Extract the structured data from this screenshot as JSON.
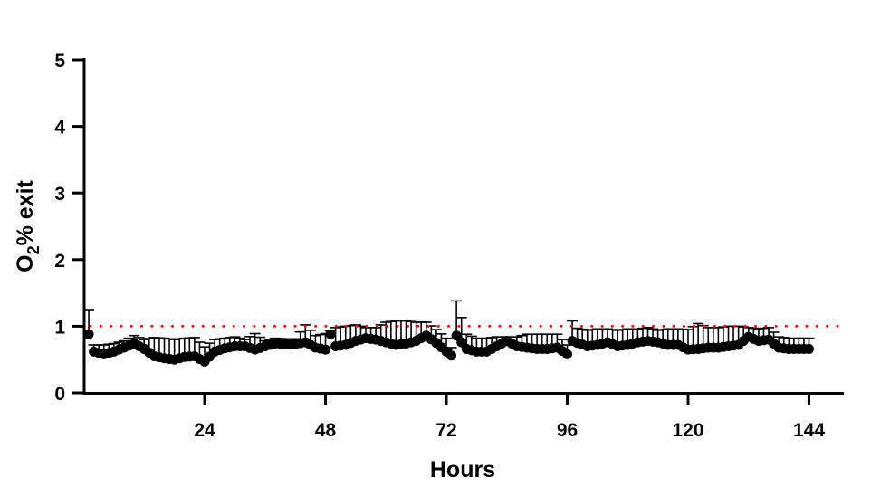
{
  "chart_data": {
    "type": "scatter",
    "title": "",
    "xlabel": "Hours",
    "ylabel": "O2% exit",
    "ylabel_parts": {
      "main": "O",
      "subscript": "2",
      "rest": "% exit"
    },
    "xlim": [
      0,
      150.6
    ],
    "ylim": [
      0,
      5
    ],
    "x_ticks": [
      24,
      48,
      72,
      96,
      120,
      144
    ],
    "y_ticks": [
      0,
      1,
      2,
      3,
      4,
      5
    ],
    "grid": false,
    "legend": null,
    "reference_line": {
      "y": 1,
      "style": "dotted",
      "color": "#e8141a"
    },
    "series": [
      {
        "name": "O2% exit",
        "color": "#000000",
        "marker": "circle",
        "error_bars": "one-sided SD",
        "x": [
          1,
          2,
          4,
          6,
          8,
          10,
          12,
          14,
          16,
          18,
          20,
          22,
          24,
          26,
          28,
          30,
          32,
          34,
          36,
          38,
          40,
          42,
          44,
          46,
          48,
          49,
          50,
          52,
          54,
          56,
          58,
          60,
          62,
          64,
          66,
          68,
          70,
          72,
          73,
          74,
          76,
          78,
          80,
          82,
          84,
          86,
          88,
          90,
          92,
          94,
          96,
          97,
          98,
          100,
          102,
          104,
          106,
          108,
          110,
          112,
          114,
          116,
          118,
          120,
          122,
          124,
          126,
          128,
          130,
          132,
          134,
          136,
          138,
          140,
          142,
          144
        ],
        "values": [
          0.88,
          0.62,
          0.58,
          0.62,
          0.68,
          0.74,
          0.66,
          0.55,
          0.52,
          0.5,
          0.54,
          0.55,
          0.47,
          0.62,
          0.67,
          0.7,
          0.7,
          0.65,
          0.7,
          0.74,
          0.73,
          0.73,
          0.76,
          0.68,
          0.65,
          0.88,
          0.7,
          0.72,
          0.78,
          0.82,
          0.8,
          0.76,
          0.72,
          0.74,
          0.78,
          0.86,
          0.75,
          0.62,
          0.56,
          0.86,
          0.66,
          0.62,
          0.62,
          0.7,
          0.78,
          0.7,
          0.68,
          0.66,
          0.66,
          0.68,
          0.58,
          0.78,
          0.75,
          0.7,
          0.72,
          0.76,
          0.7,
          0.72,
          0.76,
          0.78,
          0.76,
          0.72,
          0.72,
          0.65,
          0.66,
          0.68,
          0.68,
          0.7,
          0.72,
          0.84,
          0.78,
          0.8,
          0.68,
          0.66,
          0.66,
          0.66
        ],
        "errors": [
          0.37,
          0.1,
          0.14,
          0.12,
          0.1,
          0.12,
          0.14,
          0.28,
          0.3,
          0.3,
          0.28,
          0.28,
          0.22,
          0.18,
          0.15,
          0.14,
          0.1,
          0.24,
          0.08,
          0.08,
          0.08,
          0.08,
          0.26,
          0.18,
          0.24,
          0.05,
          0.28,
          0.28,
          0.24,
          0.16,
          0.18,
          0.3,
          0.36,
          0.34,
          0.28,
          0.2,
          0.2,
          0.2,
          0.12,
          0.52,
          0.22,
          0.2,
          0.2,
          0.14,
          0.06,
          0.14,
          0.2,
          0.22,
          0.22,
          0.2,
          0.14,
          0.3,
          0.22,
          0.24,
          0.24,
          0.2,
          0.24,
          0.24,
          0.2,
          0.2,
          0.18,
          0.24,
          0.24,
          0.3,
          0.38,
          0.3,
          0.3,
          0.3,
          0.28,
          0.14,
          0.18,
          0.18,
          0.16,
          0.16,
          0.16,
          0.16
        ]
      }
    ]
  },
  "axes": {
    "x_title": "Hours",
    "y_title_main": "O",
    "y_title_sub": "2",
    "y_title_rest": "% exit"
  }
}
